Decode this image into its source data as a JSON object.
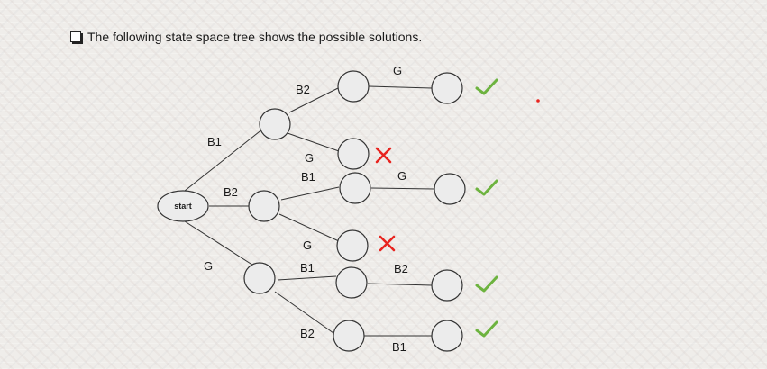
{
  "heading": {
    "text": "The following state space tree shows the possible solutions."
  },
  "colors": {
    "node_fill": "#ececec",
    "node_stroke": "#333333",
    "edge": "#333333",
    "check": "#6db33f",
    "cross": "#e8241f",
    "dot": "#e8241f"
  },
  "tree": {
    "root": {
      "label": "start"
    },
    "edge_labels": {
      "start_a": "B1",
      "start_b": "B2",
      "start_c": "G",
      "a_a1": "B2",
      "a_a2": "G",
      "b_b1": "B1",
      "b_b2": "G",
      "c_c1": "B1",
      "c_c2": "B2",
      "a1_leaf": "G",
      "b1_leaf": "G",
      "c1_leaf": "B2",
      "c2_leaf": "B1"
    },
    "outcomes": {
      "a1_leaf": "check",
      "a2": "cross",
      "b1_leaf": "check",
      "b2": "cross",
      "c1_leaf": "check",
      "c2_leaf": "check"
    }
  }
}
